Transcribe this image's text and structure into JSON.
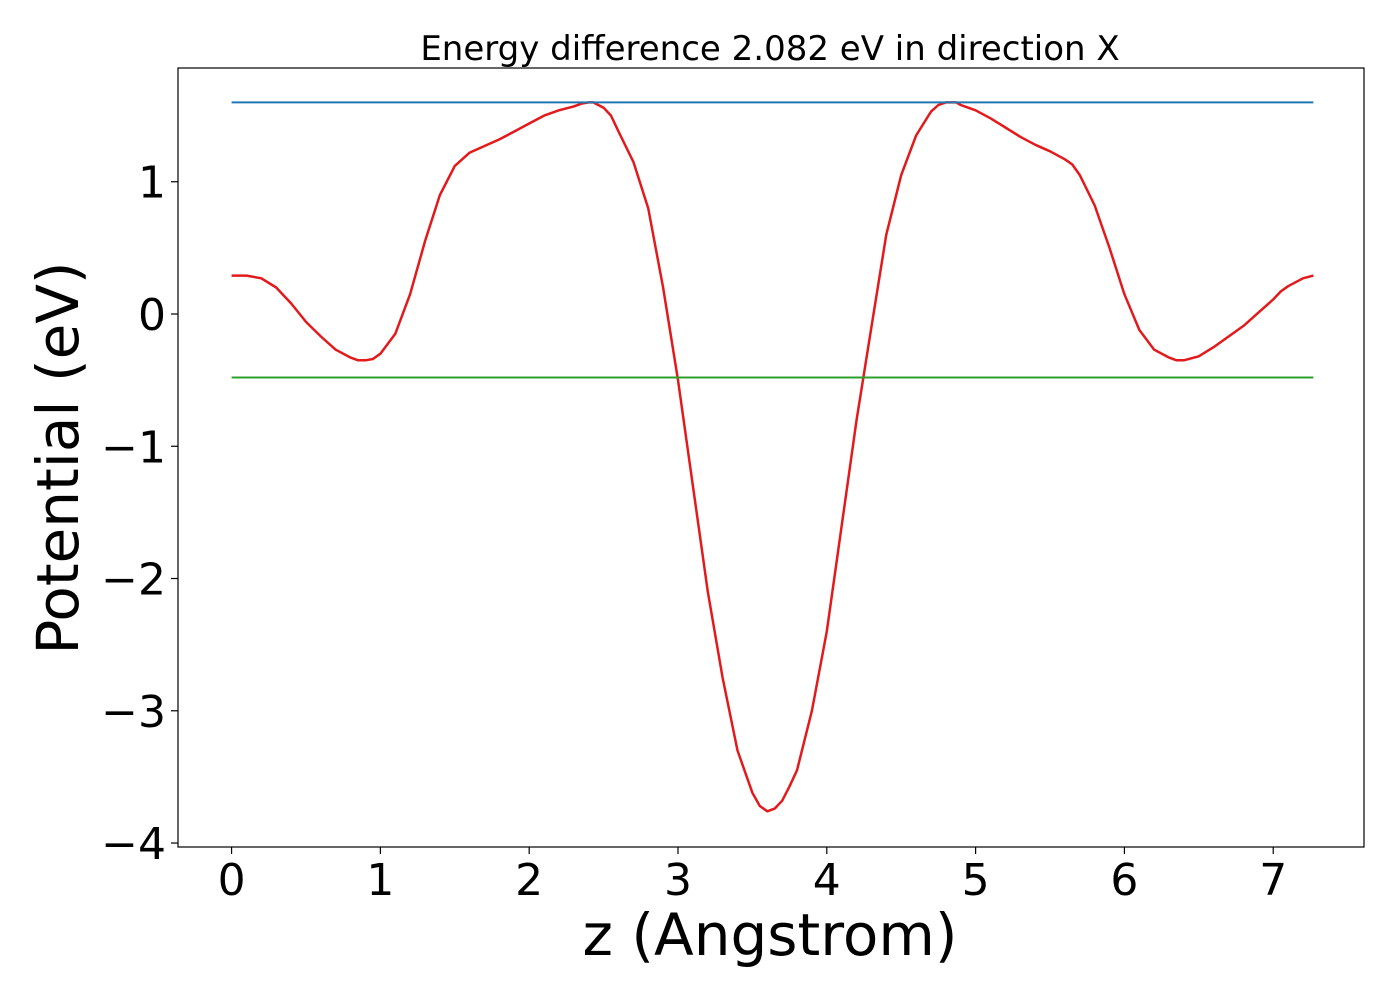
{
  "chart_data": {
    "type": "line",
    "title": "Energy difference 2.082 eV in direction X",
    "xlabel": "z (Angstrom)",
    "ylabel": "Potential (eV)",
    "xlim": [
      -0.36,
      7.61
    ],
    "ylim": [
      -4.03,
      1.86
    ],
    "xticks": [
      0,
      1,
      2,
      3,
      4,
      5,
      6,
      7
    ],
    "yticks": [
      -4,
      -3,
      -2,
      -1,
      0,
      1
    ],
    "ytick_labels": [
      "−4",
      "−3",
      "−2",
      "−1",
      "0",
      "1"
    ],
    "grid": false,
    "colors": {
      "potential": "#e31a1c",
      "max_level": "#1f77b4",
      "min_level": "#2ca02c"
    },
    "series": [
      {
        "key": "potential",
        "x": [
          0.0,
          0.1,
          0.2,
          0.3,
          0.4,
          0.5,
          0.6,
          0.7,
          0.8,
          0.85,
          0.9,
          0.95,
          1.0,
          1.1,
          1.2,
          1.3,
          1.4,
          1.5,
          1.6,
          1.7,
          1.8,
          1.9,
          2.0,
          2.1,
          2.2,
          2.3,
          2.35,
          2.4,
          2.43,
          2.5,
          2.55,
          2.6,
          2.7,
          2.8,
          2.9,
          3.0,
          3.1,
          3.2,
          3.3,
          3.4,
          3.5,
          3.55,
          3.6,
          3.65,
          3.7,
          3.75,
          3.8,
          3.9,
          4.0,
          4.1,
          4.2,
          4.3,
          4.4,
          4.5,
          4.6,
          4.7,
          4.75,
          4.8,
          4.87,
          4.9,
          4.95,
          5.0,
          5.1,
          5.2,
          5.3,
          5.4,
          5.5,
          5.6,
          5.65,
          5.7,
          5.8,
          5.9,
          6.0,
          6.1,
          6.2,
          6.3,
          6.35,
          6.4,
          6.5,
          6.6,
          6.7,
          6.8,
          6.9,
          7.0,
          7.05,
          7.1,
          7.2,
          7.27
        ],
        "y": [
          0.29,
          0.29,
          0.27,
          0.2,
          0.08,
          -0.06,
          -0.17,
          -0.27,
          -0.33,
          -0.35,
          -0.35,
          -0.34,
          -0.3,
          -0.15,
          0.15,
          0.55,
          0.9,
          1.12,
          1.22,
          1.27,
          1.32,
          1.38,
          1.44,
          1.5,
          1.54,
          1.57,
          1.59,
          1.6,
          1.6,
          1.56,
          1.5,
          1.38,
          1.15,
          0.8,
          0.2,
          -0.5,
          -1.3,
          -2.1,
          -2.75,
          -3.3,
          -3.62,
          -3.72,
          -3.76,
          -3.74,
          -3.68,
          -3.57,
          -3.45,
          -3.0,
          -2.4,
          -1.6,
          -0.8,
          -0.1,
          0.6,
          1.05,
          1.35,
          1.53,
          1.58,
          1.6,
          1.6,
          1.58,
          1.56,
          1.54,
          1.48,
          1.41,
          1.34,
          1.28,
          1.23,
          1.17,
          1.13,
          1.05,
          0.82,
          0.5,
          0.15,
          -0.12,
          -0.27,
          -0.33,
          -0.35,
          -0.35,
          -0.32,
          -0.25,
          -0.17,
          -0.09,
          0.01,
          0.11,
          0.17,
          0.21,
          0.27,
          0.29
        ]
      },
      {
        "key": "max_level",
        "x": [
          0.0,
          7.27
        ],
        "y": [
          1.6,
          1.6
        ]
      },
      {
        "key": "min_level",
        "x": [
          0.0,
          7.27
        ],
        "y": [
          -0.48,
          -0.48
        ]
      }
    ]
  }
}
